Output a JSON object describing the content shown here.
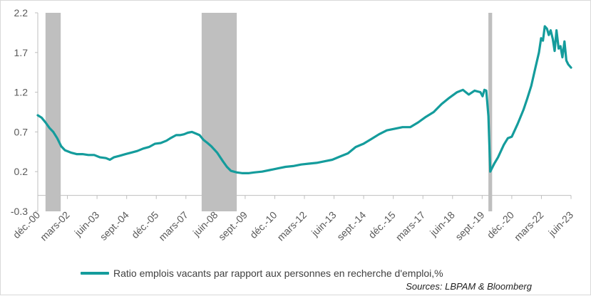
{
  "chart_data": {
    "type": "line",
    "x_tick_labels": [
      "déc.-00",
      "mars-02",
      "juin-03",
      "sept.-04",
      "déc.-05",
      "mars-07",
      "juin-08",
      "sept.-09",
      "déc.-10",
      "mars-12",
      "juin-13",
      "sept.-14",
      "déc.-15",
      "mars-17",
      "juin-18",
      "sept.-19",
      "déc.-20",
      "mars-22",
      "juin-23"
    ],
    "y_ticks": [
      -0.3,
      0.2,
      0.7,
      1.2,
      1.7,
      2.2
    ],
    "y_tick_labels": [
      "-0.3",
      "0.2",
      "0.7",
      "1.2",
      "1.7",
      "2.2"
    ],
    "ylim": [
      -0.3,
      2.2
    ],
    "xlim": [
      2000.92,
      2023.7
    ],
    "x_axis_crosses_at": -0.1,
    "grid": false,
    "legend_position": "bottom",
    "recession_bands": [
      [
        2001.25,
        2001.9
      ],
      [
        2007.92,
        2009.42
      ],
      [
        2020.17,
        2020.33
      ]
    ],
    "series": [
      {
        "name": "Ratio emplois vacants par rapport aux personnes en recherche d'emploi,%",
        "color": "#149c9c",
        "points": [
          [
            2000.92,
            0.91
          ],
          [
            2001.08,
            0.88
          ],
          [
            2001.25,
            0.82
          ],
          [
            2001.42,
            0.75
          ],
          [
            2001.58,
            0.7
          ],
          [
            2001.75,
            0.62
          ],
          [
            2001.92,
            0.52
          ],
          [
            2002.08,
            0.47
          ],
          [
            2002.33,
            0.44
          ],
          [
            2002.58,
            0.42
          ],
          [
            2002.83,
            0.42
          ],
          [
            2003.08,
            0.41
          ],
          [
            2003.33,
            0.41
          ],
          [
            2003.58,
            0.38
          ],
          [
            2003.83,
            0.37
          ],
          [
            2004.0,
            0.35
          ],
          [
            2004.17,
            0.38
          ],
          [
            2004.42,
            0.4
          ],
          [
            2004.67,
            0.42
          ],
          [
            2004.92,
            0.44
          ],
          [
            2005.17,
            0.46
          ],
          [
            2005.42,
            0.49
          ],
          [
            2005.67,
            0.51
          ],
          [
            2005.92,
            0.55
          ],
          [
            2006.17,
            0.56
          ],
          [
            2006.42,
            0.59
          ],
          [
            2006.58,
            0.62
          ],
          [
            2006.83,
            0.66
          ],
          [
            2007.0,
            0.66
          ],
          [
            2007.17,
            0.67
          ],
          [
            2007.33,
            0.69
          ],
          [
            2007.5,
            0.7
          ],
          [
            2007.67,
            0.68
          ],
          [
            2007.83,
            0.66
          ],
          [
            2008.0,
            0.6
          ],
          [
            2008.17,
            0.56
          ],
          [
            2008.33,
            0.52
          ],
          [
            2008.58,
            0.44
          ],
          [
            2008.83,
            0.33
          ],
          [
            2009.0,
            0.26
          ],
          [
            2009.17,
            0.21
          ],
          [
            2009.42,
            0.19
          ],
          [
            2009.67,
            0.18
          ],
          [
            2009.92,
            0.18
          ],
          [
            2010.17,
            0.19
          ],
          [
            2010.5,
            0.2
          ],
          [
            2010.83,
            0.22
          ],
          [
            2011.17,
            0.24
          ],
          [
            2011.5,
            0.26
          ],
          [
            2011.83,
            0.27
          ],
          [
            2012.17,
            0.29
          ],
          [
            2012.5,
            0.3
          ],
          [
            2012.83,
            0.31
          ],
          [
            2013.17,
            0.33
          ],
          [
            2013.5,
            0.35
          ],
          [
            2013.83,
            0.39
          ],
          [
            2014.17,
            0.43
          ],
          [
            2014.5,
            0.51
          ],
          [
            2014.83,
            0.55
          ],
          [
            2015.17,
            0.61
          ],
          [
            2015.5,
            0.67
          ],
          [
            2015.83,
            0.72
          ],
          [
            2016.17,
            0.74
          ],
          [
            2016.5,
            0.76
          ],
          [
            2016.83,
            0.76
          ],
          [
            2017.17,
            0.82
          ],
          [
            2017.5,
            0.89
          ],
          [
            2017.83,
            0.95
          ],
          [
            2018.17,
            1.05
          ],
          [
            2018.5,
            1.13
          ],
          [
            2018.83,
            1.2
          ],
          [
            2019.08,
            1.23
          ],
          [
            2019.33,
            1.17
          ],
          [
            2019.58,
            1.22
          ],
          [
            2019.83,
            1.2
          ],
          [
            2019.92,
            1.15
          ],
          [
            2020.0,
            1.23
          ],
          [
            2020.08,
            1.22
          ],
          [
            2020.17,
            0.9
          ],
          [
            2020.25,
            0.2
          ],
          [
            2020.42,
            0.3
          ],
          [
            2020.58,
            0.38
          ],
          [
            2020.83,
            0.54
          ],
          [
            2021.0,
            0.62
          ],
          [
            2021.17,
            0.64
          ],
          [
            2021.42,
            0.8
          ],
          [
            2021.67,
            0.98
          ],
          [
            2021.83,
            1.12
          ],
          [
            2022.0,
            1.28
          ],
          [
            2022.17,
            1.5
          ],
          [
            2022.33,
            1.7
          ],
          [
            2022.42,
            1.88
          ],
          [
            2022.5,
            1.85
          ],
          [
            2022.58,
            2.03
          ],
          [
            2022.67,
            2.0
          ],
          [
            2022.75,
            1.92
          ],
          [
            2022.83,
            1.98
          ],
          [
            2022.92,
            1.87
          ],
          [
            2023.0,
            1.72
          ],
          [
            2023.08,
            1.98
          ],
          [
            2023.17,
            1.75
          ],
          [
            2023.25,
            1.78
          ],
          [
            2023.33,
            1.64
          ],
          [
            2023.42,
            1.84
          ],
          [
            2023.5,
            1.6
          ],
          [
            2023.58,
            1.55
          ],
          [
            2023.7,
            1.51
          ]
        ]
      }
    ],
    "source": "Sources: LBPAM & Bloomberg"
  }
}
